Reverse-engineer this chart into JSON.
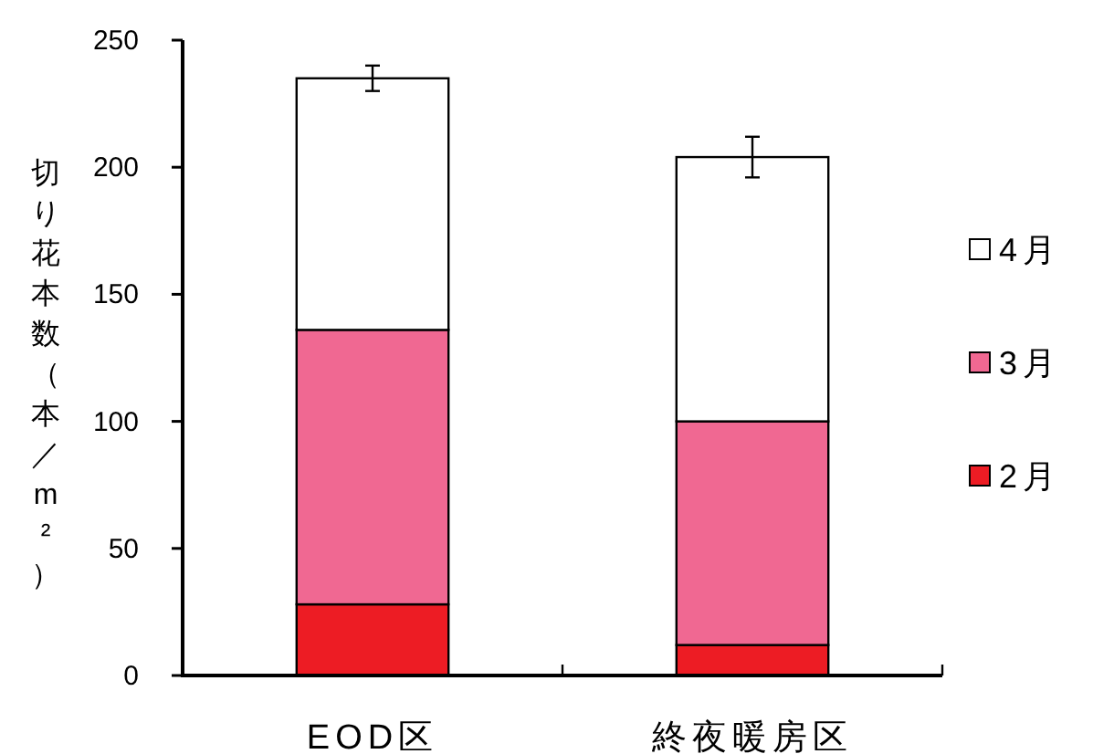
{
  "chart_data": {
    "type": "bar",
    "stacked": true,
    "ylabel": "切り花本数（本／m²）",
    "categories": [
      "EOD区",
      "終夜暖房区"
    ],
    "ylim": [
      0,
      250
    ],
    "yticks": [
      0,
      50,
      100,
      150,
      200,
      250
    ],
    "legend": "right",
    "grid": false,
    "series": [
      {
        "name": "2月",
        "color": "#ed1c24",
        "values": [
          28,
          12
        ]
      },
      {
        "name": "3月",
        "color": "#f06892",
        "values": [
          108,
          88
        ]
      },
      {
        "name": "4月",
        "color": "#ffffff",
        "values": [
          99,
          104
        ],
        "errors": [
          5,
          8
        ]
      }
    ]
  }
}
